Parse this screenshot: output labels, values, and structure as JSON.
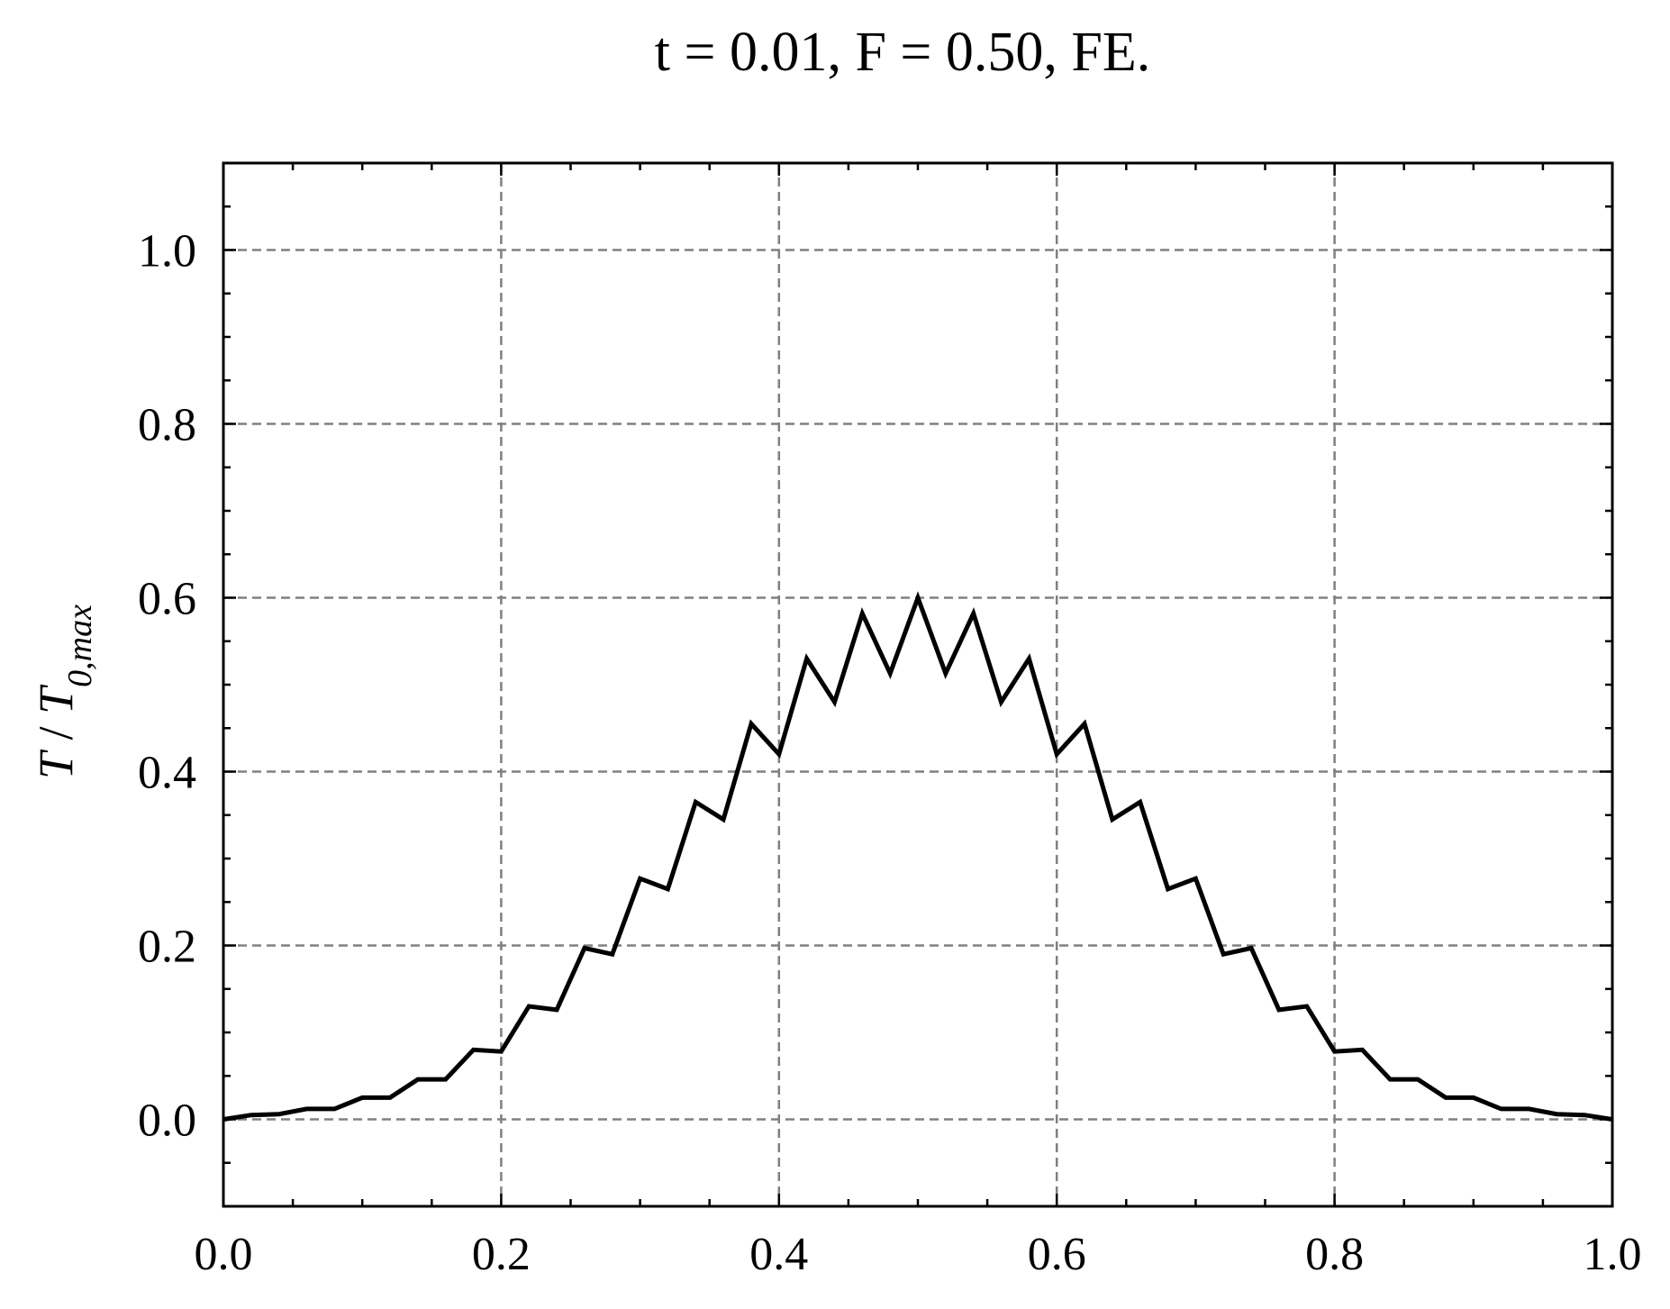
{
  "chart_data": {
    "type": "line",
    "title": "t = 0.01, F = 0.50, FE.",
    "xlabel": "",
    "ylabel": "T / T0,max",
    "ylabel_parts": {
      "T": "T",
      "slash": " / ",
      "T0": "T",
      "sub": "0,max"
    },
    "xlim": [
      0.0,
      1.0
    ],
    "ylim": [
      -0.1,
      1.1
    ],
    "grid": true,
    "x_ticks": [
      0.0,
      0.2,
      0.4,
      0.6,
      0.8,
      1.0
    ],
    "x_tick_labels": [
      "0.0",
      "0.2",
      "0.4",
      "0.6",
      "0.8",
      "1.0"
    ],
    "y_ticks": [
      0.0,
      0.2,
      0.4,
      0.6,
      0.8,
      1.0
    ],
    "y_tick_labels": [
      "0.0",
      "0.2",
      "0.4",
      "0.6",
      "0.8",
      "1.0"
    ],
    "x_minor_step": 0.05,
    "y_minor_step": 0.05,
    "series": [
      {
        "name": "T/T0,max",
        "color": "#000000",
        "x": [
          0.0,
          0.02,
          0.04,
          0.06,
          0.08,
          0.1,
          0.12,
          0.14,
          0.16,
          0.18,
          0.2,
          0.22,
          0.24,
          0.26,
          0.28,
          0.3,
          0.32,
          0.34,
          0.36,
          0.38,
          0.4,
          0.42,
          0.44,
          0.46,
          0.48,
          0.5,
          0.52,
          0.54,
          0.56,
          0.58,
          0.6,
          0.62,
          0.64,
          0.66,
          0.68,
          0.7,
          0.72,
          0.74,
          0.76,
          0.78,
          0.8,
          0.82,
          0.84,
          0.86,
          0.88,
          0.9,
          0.92,
          0.94,
          0.96,
          0.98,
          1.0
        ],
        "y": [
          0.0,
          0.005,
          0.006,
          0.012,
          0.012,
          0.025,
          0.025,
          0.046,
          0.046,
          0.08,
          0.078,
          0.13,
          0.126,
          0.197,
          0.19,
          0.277,
          0.265,
          0.365,
          0.345,
          0.455,
          0.42,
          0.53,
          0.48,
          0.582,
          0.513,
          0.6,
          0.513,
          0.582,
          0.48,
          0.53,
          0.42,
          0.455,
          0.345,
          0.365,
          0.265,
          0.277,
          0.19,
          0.197,
          0.126,
          0.13,
          0.078,
          0.08,
          0.046,
          0.046,
          0.025,
          0.025,
          0.012,
          0.012,
          0.006,
          0.005,
          0.0
        ]
      }
    ]
  }
}
